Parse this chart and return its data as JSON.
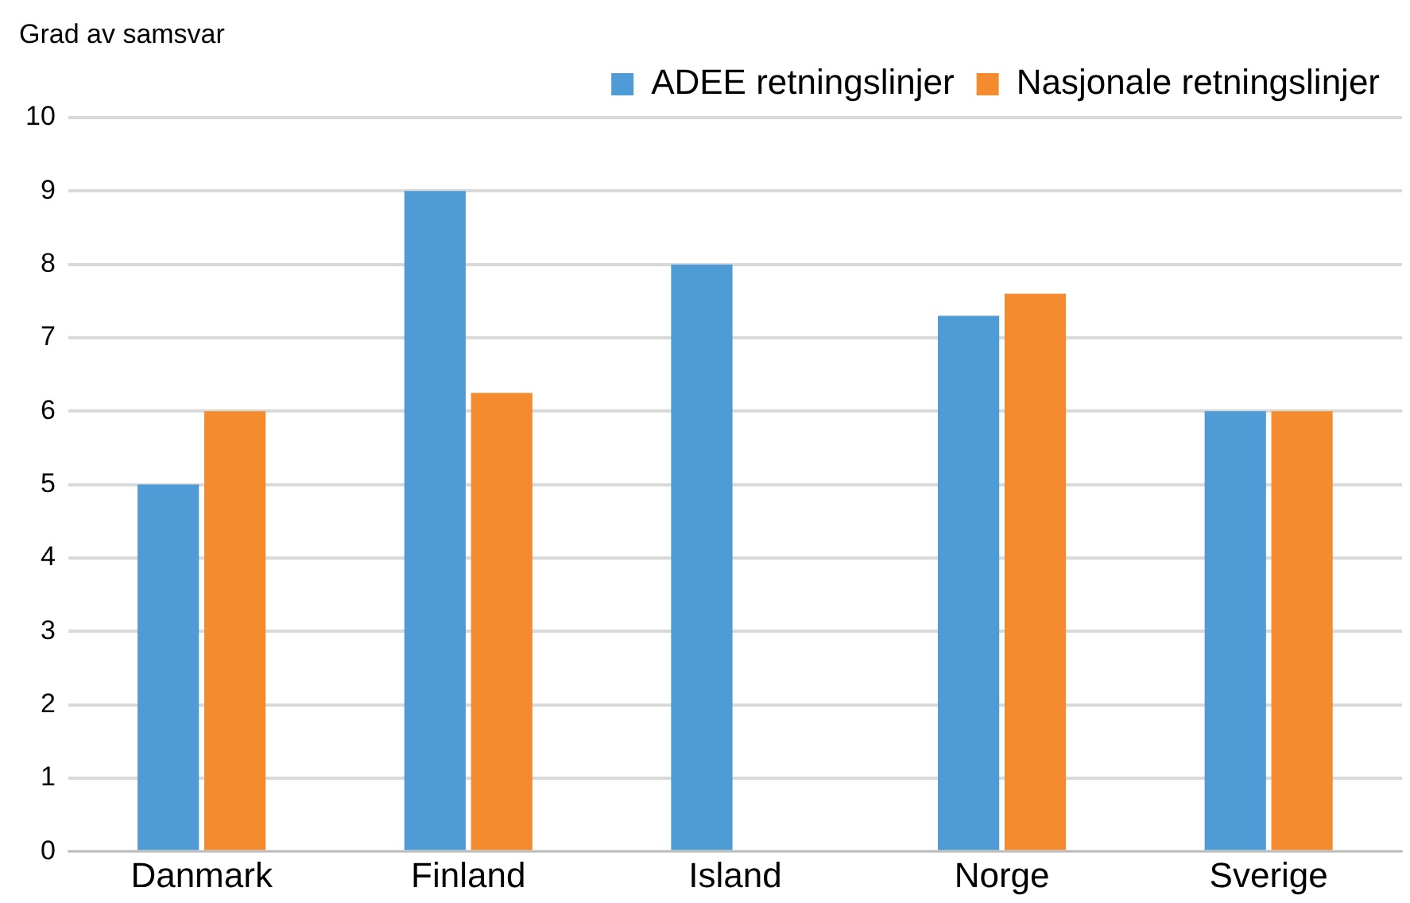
{
  "chart_data": {
    "type": "bar",
    "ylabel": "Grad av samsvar",
    "categories": [
      "Danmark",
      "Finland",
      "Island",
      "Norge",
      "Sverige"
    ],
    "series": [
      {
        "name": "ADEE retningslinjer",
        "color": "#4f9bd6",
        "values": [
          5,
          9,
          8,
          7.3,
          6
        ]
      },
      {
        "name": "Nasjonale retningslinjer",
        "color": "#f58b2f",
        "values": [
          6,
          6.25,
          null,
          7.6,
          6
        ]
      }
    ],
    "ylim": [
      0,
      10
    ],
    "yticks": [
      0,
      1,
      2,
      3,
      4,
      5,
      6,
      7,
      8,
      9,
      10
    ],
    "grid": "y",
    "legend": "top right"
  }
}
